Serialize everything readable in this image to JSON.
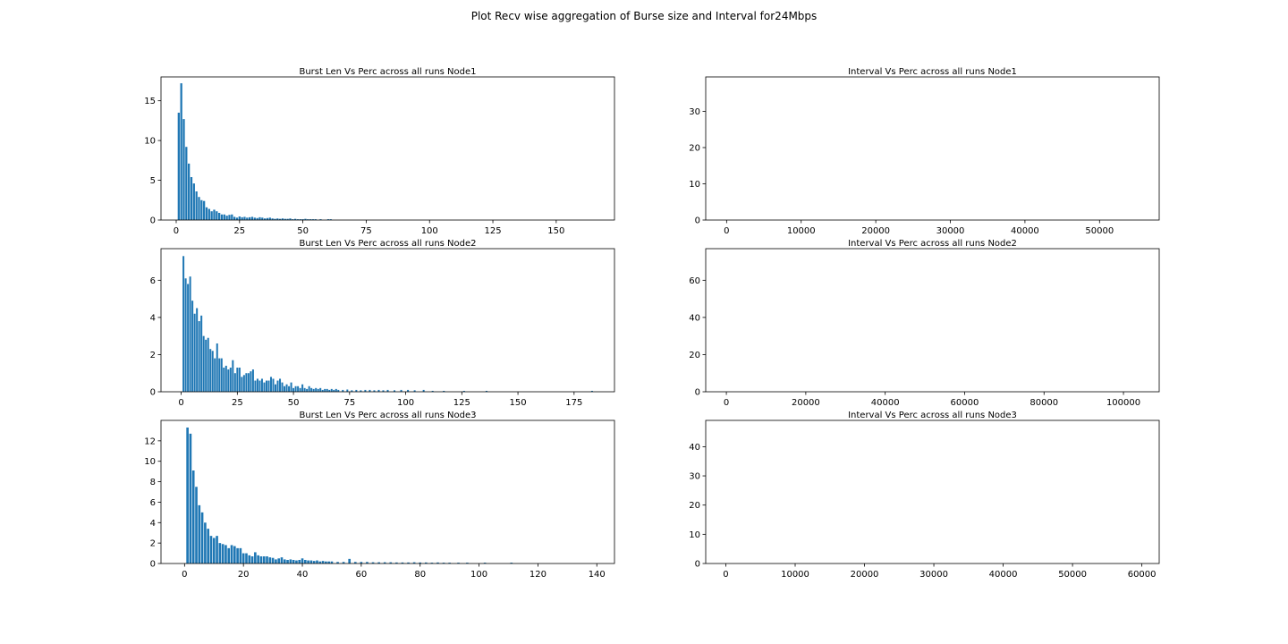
{
  "figure_title": "Plot Recv wise aggregation of Burse size and Interval for24Mbps",
  "colors": {
    "bar": "#1f77b4",
    "axis": "#000000",
    "background": "#ffffff"
  },
  "chart_data": [
    {
      "type": "bar",
      "title": "Burst Len  Vs Perc across all runs Node1",
      "xlim": [
        -6,
        173
      ],
      "ylim": [
        0,
        18
      ],
      "xticks": [
        0,
        25,
        50,
        75,
        100,
        125,
        150
      ],
      "yticks": [
        0,
        5,
        10,
        15
      ],
      "x": [
        1,
        2,
        3,
        4,
        5,
        6,
        7,
        8,
        9,
        10,
        11,
        12,
        13,
        14,
        15,
        16,
        17,
        18,
        19,
        20,
        21,
        22,
        23,
        24,
        25,
        26,
        27,
        28,
        29,
        30,
        31,
        32,
        33,
        34,
        35,
        36,
        37,
        38,
        39,
        40,
        41,
        42,
        43,
        44,
        45,
        46,
        47,
        48,
        49,
        50,
        51,
        52,
        53,
        54,
        55,
        57,
        60,
        61
      ],
      "values": [
        13.5,
        17.2,
        12.7,
        9.2,
        7.1,
        5.4,
        4.6,
        3.6,
        2.9,
        2.5,
        2.4,
        1.6,
        1.4,
        1.1,
        1.3,
        1.1,
        0.9,
        0.7,
        0.7,
        0.55,
        0.65,
        0.7,
        0.4,
        0.3,
        0.45,
        0.35,
        0.4,
        0.3,
        0.35,
        0.4,
        0.3,
        0.25,
        0.35,
        0.3,
        0.2,
        0.25,
        0.3,
        0.2,
        0.15,
        0.2,
        0.15,
        0.2,
        0.15,
        0.15,
        0.2,
        0.1,
        0.15,
        0.1,
        0.1,
        0.1,
        0.15,
        0.1,
        0.1,
        0.1,
        0.1,
        0.1,
        0.1,
        0.1
      ]
    },
    {
      "type": "bar",
      "title": "Interval Vs Perc across all runs Node1",
      "xlim": [
        -2800,
        58000
      ],
      "ylim": [
        0,
        39.5
      ],
      "xticks": [
        0,
        10000,
        20000,
        30000,
        40000,
        50000
      ],
      "yticks": [
        0,
        10,
        20,
        30
      ],
      "x": [],
      "values": []
    },
    {
      "type": "bar",
      "title": "Burst Len  Vs Perc across all runs Node2",
      "xlim": [
        -9,
        193
      ],
      "ylim": [
        0,
        7.7
      ],
      "xticks": [
        0,
        25,
        50,
        75,
        100,
        125,
        150,
        175
      ],
      "yticks": [
        0,
        2,
        4,
        6
      ],
      "x": [
        1,
        2,
        3,
        4,
        5,
        6,
        7,
        8,
        9,
        10,
        11,
        12,
        13,
        14,
        15,
        16,
        17,
        18,
        19,
        20,
        21,
        22,
        23,
        24,
        25,
        26,
        27,
        28,
        29,
        30,
        31,
        32,
        33,
        34,
        35,
        36,
        37,
        38,
        39,
        40,
        41,
        42,
        43,
        44,
        45,
        46,
        47,
        48,
        49,
        50,
        51,
        52,
        53,
        54,
        55,
        56,
        57,
        58,
        59,
        60,
        61,
        62,
        63,
        64,
        65,
        66,
        67,
        68,
        69,
        70,
        72,
        74,
        76,
        78,
        80,
        82,
        84,
        86,
        88,
        90,
        92,
        95,
        98,
        101,
        104,
        108,
        112,
        117,
        126,
        136,
        183
      ],
      "values": [
        7.3,
        6.1,
        5.8,
        6.2,
        4.9,
        4.2,
        4.5,
        3.8,
        4.1,
        3.0,
        2.8,
        2.9,
        2.3,
        2.2,
        1.8,
        2.6,
        1.8,
        1.8,
        1.3,
        1.4,
        1.2,
        1.3,
        1.7,
        1.0,
        1.3,
        1.3,
        0.8,
        0.9,
        1.0,
        1.0,
        1.1,
        1.2,
        0.6,
        0.7,
        0.6,
        0.7,
        0.5,
        0.6,
        0.6,
        0.8,
        0.7,
        0.4,
        0.6,
        0.7,
        0.5,
        0.3,
        0.4,
        0.3,
        0.5,
        0.2,
        0.3,
        0.3,
        0.2,
        0.4,
        0.2,
        0.15,
        0.3,
        0.2,
        0.15,
        0.2,
        0.15,
        0.2,
        0.1,
        0.15,
        0.15,
        0.1,
        0.15,
        0.1,
        0.15,
        0.1,
        0.1,
        0.12,
        0.08,
        0.1,
        0.08,
        0.1,
        0.1,
        0.08,
        0.1,
        0.08,
        0.1,
        0.08,
        0.1,
        0.1,
        0.08,
        0.1,
        0.05,
        0.05,
        0.05,
        0.05,
        0.05
      ]
    },
    {
      "type": "bar",
      "title": "Interval Vs Perc across all runs Node2",
      "xlim": [
        -5200,
        109000
      ],
      "ylim": [
        0,
        77
      ],
      "xticks": [
        0,
        20000,
        40000,
        60000,
        80000,
        100000
      ],
      "yticks": [
        0,
        20,
        40,
        60
      ],
      "x": [],
      "values": []
    },
    {
      "type": "bar",
      "title": "Burst Len  Vs Perc across all runs Node3",
      "xlim": [
        -8,
        146
      ],
      "ylim": [
        0,
        14
      ],
      "xticks": [
        0,
        20,
        40,
        60,
        80,
        100,
        120,
        140
      ],
      "yticks": [
        0,
        2,
        4,
        6,
        8,
        10,
        12
      ],
      "x": [
        1,
        2,
        3,
        4,
        5,
        6,
        7,
        8,
        9,
        10,
        11,
        12,
        13,
        14,
        15,
        16,
        17,
        18,
        19,
        20,
        21,
        22,
        23,
        24,
        25,
        26,
        27,
        28,
        29,
        30,
        31,
        32,
        33,
        34,
        35,
        36,
        37,
        38,
        39,
        40,
        41,
        42,
        43,
        44,
        45,
        46,
        47,
        48,
        49,
        50,
        52,
        54,
        56,
        58,
        60,
        62,
        64,
        66,
        68,
        70,
        72,
        74,
        76,
        78,
        80,
        82,
        84,
        86,
        88,
        90,
        93,
        96,
        102,
        111
      ],
      "values": [
        13.3,
        12.7,
        9.1,
        7.5,
        5.7,
        5.0,
        4.0,
        3.4,
        2.7,
        2.5,
        2.7,
        2.0,
        1.9,
        1.8,
        1.5,
        1.8,
        1.7,
        1.5,
        1.5,
        1.0,
        1.0,
        0.8,
        0.7,
        1.1,
        0.8,
        0.7,
        0.7,
        0.7,
        0.6,
        0.55,
        0.4,
        0.5,
        0.6,
        0.4,
        0.35,
        0.4,
        0.35,
        0.3,
        0.35,
        0.5,
        0.35,
        0.3,
        0.3,
        0.25,
        0.3,
        0.2,
        0.25,
        0.2,
        0.2,
        0.2,
        0.15,
        0.15,
        0.45,
        0.15,
        0.15,
        0.15,
        0.12,
        0.12,
        0.12,
        0.12,
        0.1,
        0.1,
        0.1,
        0.12,
        0.1,
        0.1,
        0.08,
        0.1,
        0.08,
        0.08,
        0.08,
        0.08,
        0.08,
        0.08
      ]
    },
    {
      "type": "bar",
      "title": "Interval Vs Perc across all runs Node3",
      "xlim": [
        -2900,
        62500
      ],
      "ylim": [
        0,
        49
      ],
      "xticks": [
        0,
        10000,
        20000,
        30000,
        40000,
        50000,
        60000
      ],
      "yticks": [
        0,
        10,
        20,
        30,
        40
      ],
      "x": [],
      "values": []
    }
  ]
}
